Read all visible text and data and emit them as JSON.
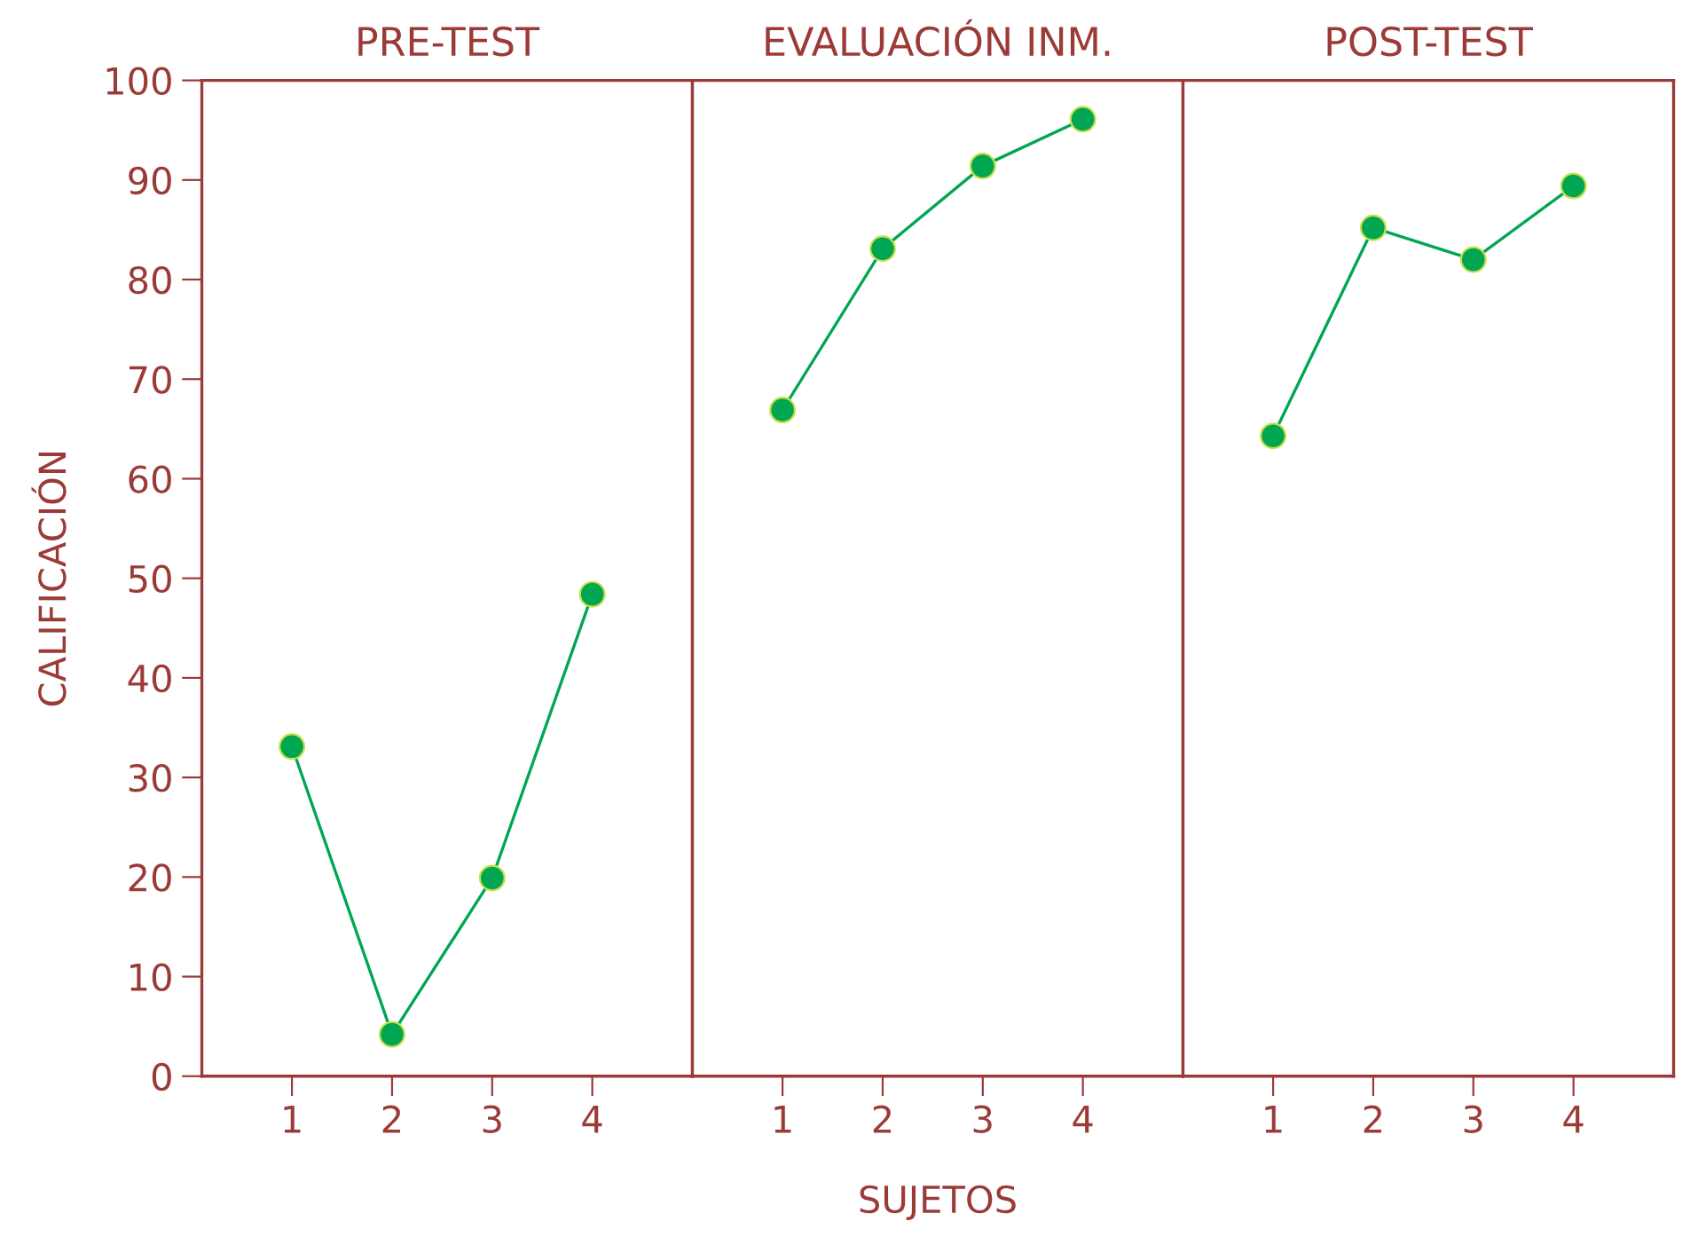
{
  "chart_data": [
    {
      "type": "line",
      "title": "PRE-TEST",
      "ylabel": "CALIFICACIÓN",
      "categories": [
        "1",
        "2",
        "3",
        "4"
      ],
      "values": [
        33.1,
        4.2,
        19.9,
        48.4
      ],
      "color": "#00a651",
      "marker": "circle",
      "ylim": [
        0,
        100
      ],
      "yticks": [
        0,
        10,
        20,
        30,
        40,
        50,
        60,
        70,
        80,
        90,
        100
      ],
      "grid": false,
      "legend": false
    },
    {
      "type": "line",
      "title": "EVALUACIÓN INM.",
      "xlabel": "SUJETOS",
      "categories": [
        "1",
        "2",
        "3",
        "4"
      ],
      "values": [
        66.9,
        83.1,
        91.4,
        96.1
      ],
      "color": "#00a651",
      "marker": "circle",
      "ylim": [
        0,
        100
      ],
      "tick_labels": "x",
      "grid": false,
      "legend": false
    },
    {
      "type": "line",
      "title": "POST-TEST",
      "categories": [
        "1",
        "2",
        "3",
        "4"
      ],
      "values": [
        64.3,
        85.2,
        82.0,
        89.4
      ],
      "color": "#00a651",
      "marker": "circle",
      "ylim": [
        0,
        100
      ],
      "tick_labels": "x",
      "grid": false,
      "legend": false
    }
  ]
}
